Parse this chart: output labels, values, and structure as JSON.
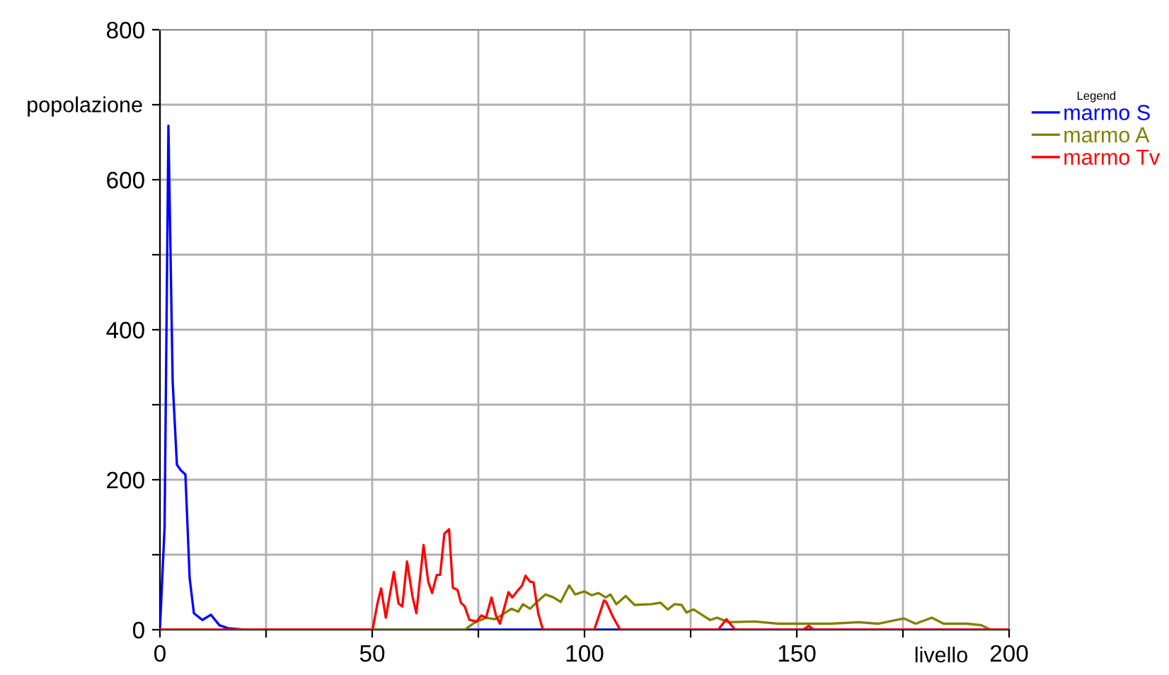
{
  "chart_data": {
    "type": "line",
    "xlabel": "livello",
    "ylabel": "popolazione",
    "legend_title": "Legend",
    "xlim": [
      0,
      200
    ],
    "ylim": [
      0,
      800
    ],
    "xticks": [
      0,
      {
        "value": 25,
        "label": null
      },
      50,
      {
        "value": 75,
        "label": null
      },
      100,
      {
        "value": 125,
        "label": null
      },
      150,
      {
        "value": 175,
        "label": null
      },
      200
    ],
    "yticks": [
      0,
      {
        "value": 100,
        "label": null
      },
      200,
      {
        "value": 300,
        "label": null
      },
      400,
      {
        "value": 500,
        "label": null
      },
      600,
      {
        "value": 700,
        "label": null
      },
      800
    ],
    "grid": true,
    "legend": "top right",
    "marker": "none",
    "line_style": "solid",
    "series": [
      {
        "name": "marmo S",
        "color": "#0000ff",
        "x": [
          0,
          1.1,
          2,
          3,
          4,
          5,
          6,
          7,
          8,
          10,
          12,
          14,
          16,
          20,
          200
        ],
        "values": [
          0,
          137,
          672,
          331,
          220,
          212,
          207,
          69,
          22,
          13,
          20,
          6,
          2,
          0,
          0
        ]
      },
      {
        "name": "marmo A",
        "color": "#808000",
        "x": [
          0,
          71.8,
          74,
          76.8,
          79,
          80.6,
          82.8,
          84.4,
          85.5,
          87.2,
          88.8,
          90.8,
          92.7,
          94.4,
          96.4,
          97.8,
          100,
          101.7,
          103.3,
          105,
          106.1,
          107.5,
          109.7,
          111.8,
          115.7,
          117.9,
          119.6,
          121.2,
          122.9,
          124,
          125.7,
          127.9,
          129.6,
          131.2,
          134,
          140.1,
          145.7,
          151.2,
          157.9,
          164.6,
          169.1,
          175.2,
          178,
          181.8,
          184.6,
          190.2,
          193.5,
          195.7,
          200
        ],
        "values": [
          0,
          0,
          9,
          16,
          14,
          20,
          28,
          24,
          34,
          28,
          37,
          47,
          43,
          37,
          59,
          47,
          51,
          46,
          49,
          43,
          47,
          34,
          45,
          33,
          34,
          36,
          27,
          34,
          33,
          23,
          27,
          19,
          13,
          16,
          10,
          11,
          8,
          8,
          8,
          10,
          8,
          15,
          8,
          16,
          8,
          8,
          6,
          0,
          0
        ]
      },
      {
        "name": "marmo Tv",
        "color": "#ff0000",
        "x": [
          0,
          50.1,
          51.2,
          52.1,
          53.2,
          55.1,
          56.2,
          57.1,
          58.2,
          59.5,
          60.4,
          62.1,
          63.2,
          64.1,
          65.2,
          66,
          67,
          68.1,
          69,
          70.1,
          70.9,
          71.8,
          72.9,
          74.6,
          75.7,
          76.8,
          78.1,
          79.2,
          80.1,
          82.1,
          83,
          84.1,
          85.3,
          86.1,
          87.2,
          88,
          89.1,
          90.2,
          102.3,
          104.6,
          105.1,
          106.8,
          108.4,
          131.5,
          133.4,
          135.5,
          151.5,
          152.8,
          154,
          200
        ],
        "values": [
          0,
          0,
          34,
          55,
          16,
          77,
          35,
          31,
          91,
          44,
          22,
          113,
          64,
          49,
          73,
          73,
          128,
          134,
          56,
          53,
          36,
          31,
          13,
          11,
          19,
          16,
          43,
          18,
          8,
          50,
          43,
          51,
          59,
          72,
          64,
          63,
          22,
          0,
          0,
          39,
          37,
          16,
          0,
          0,
          14,
          0,
          0,
          5,
          0,
          0
        ]
      }
    ]
  }
}
